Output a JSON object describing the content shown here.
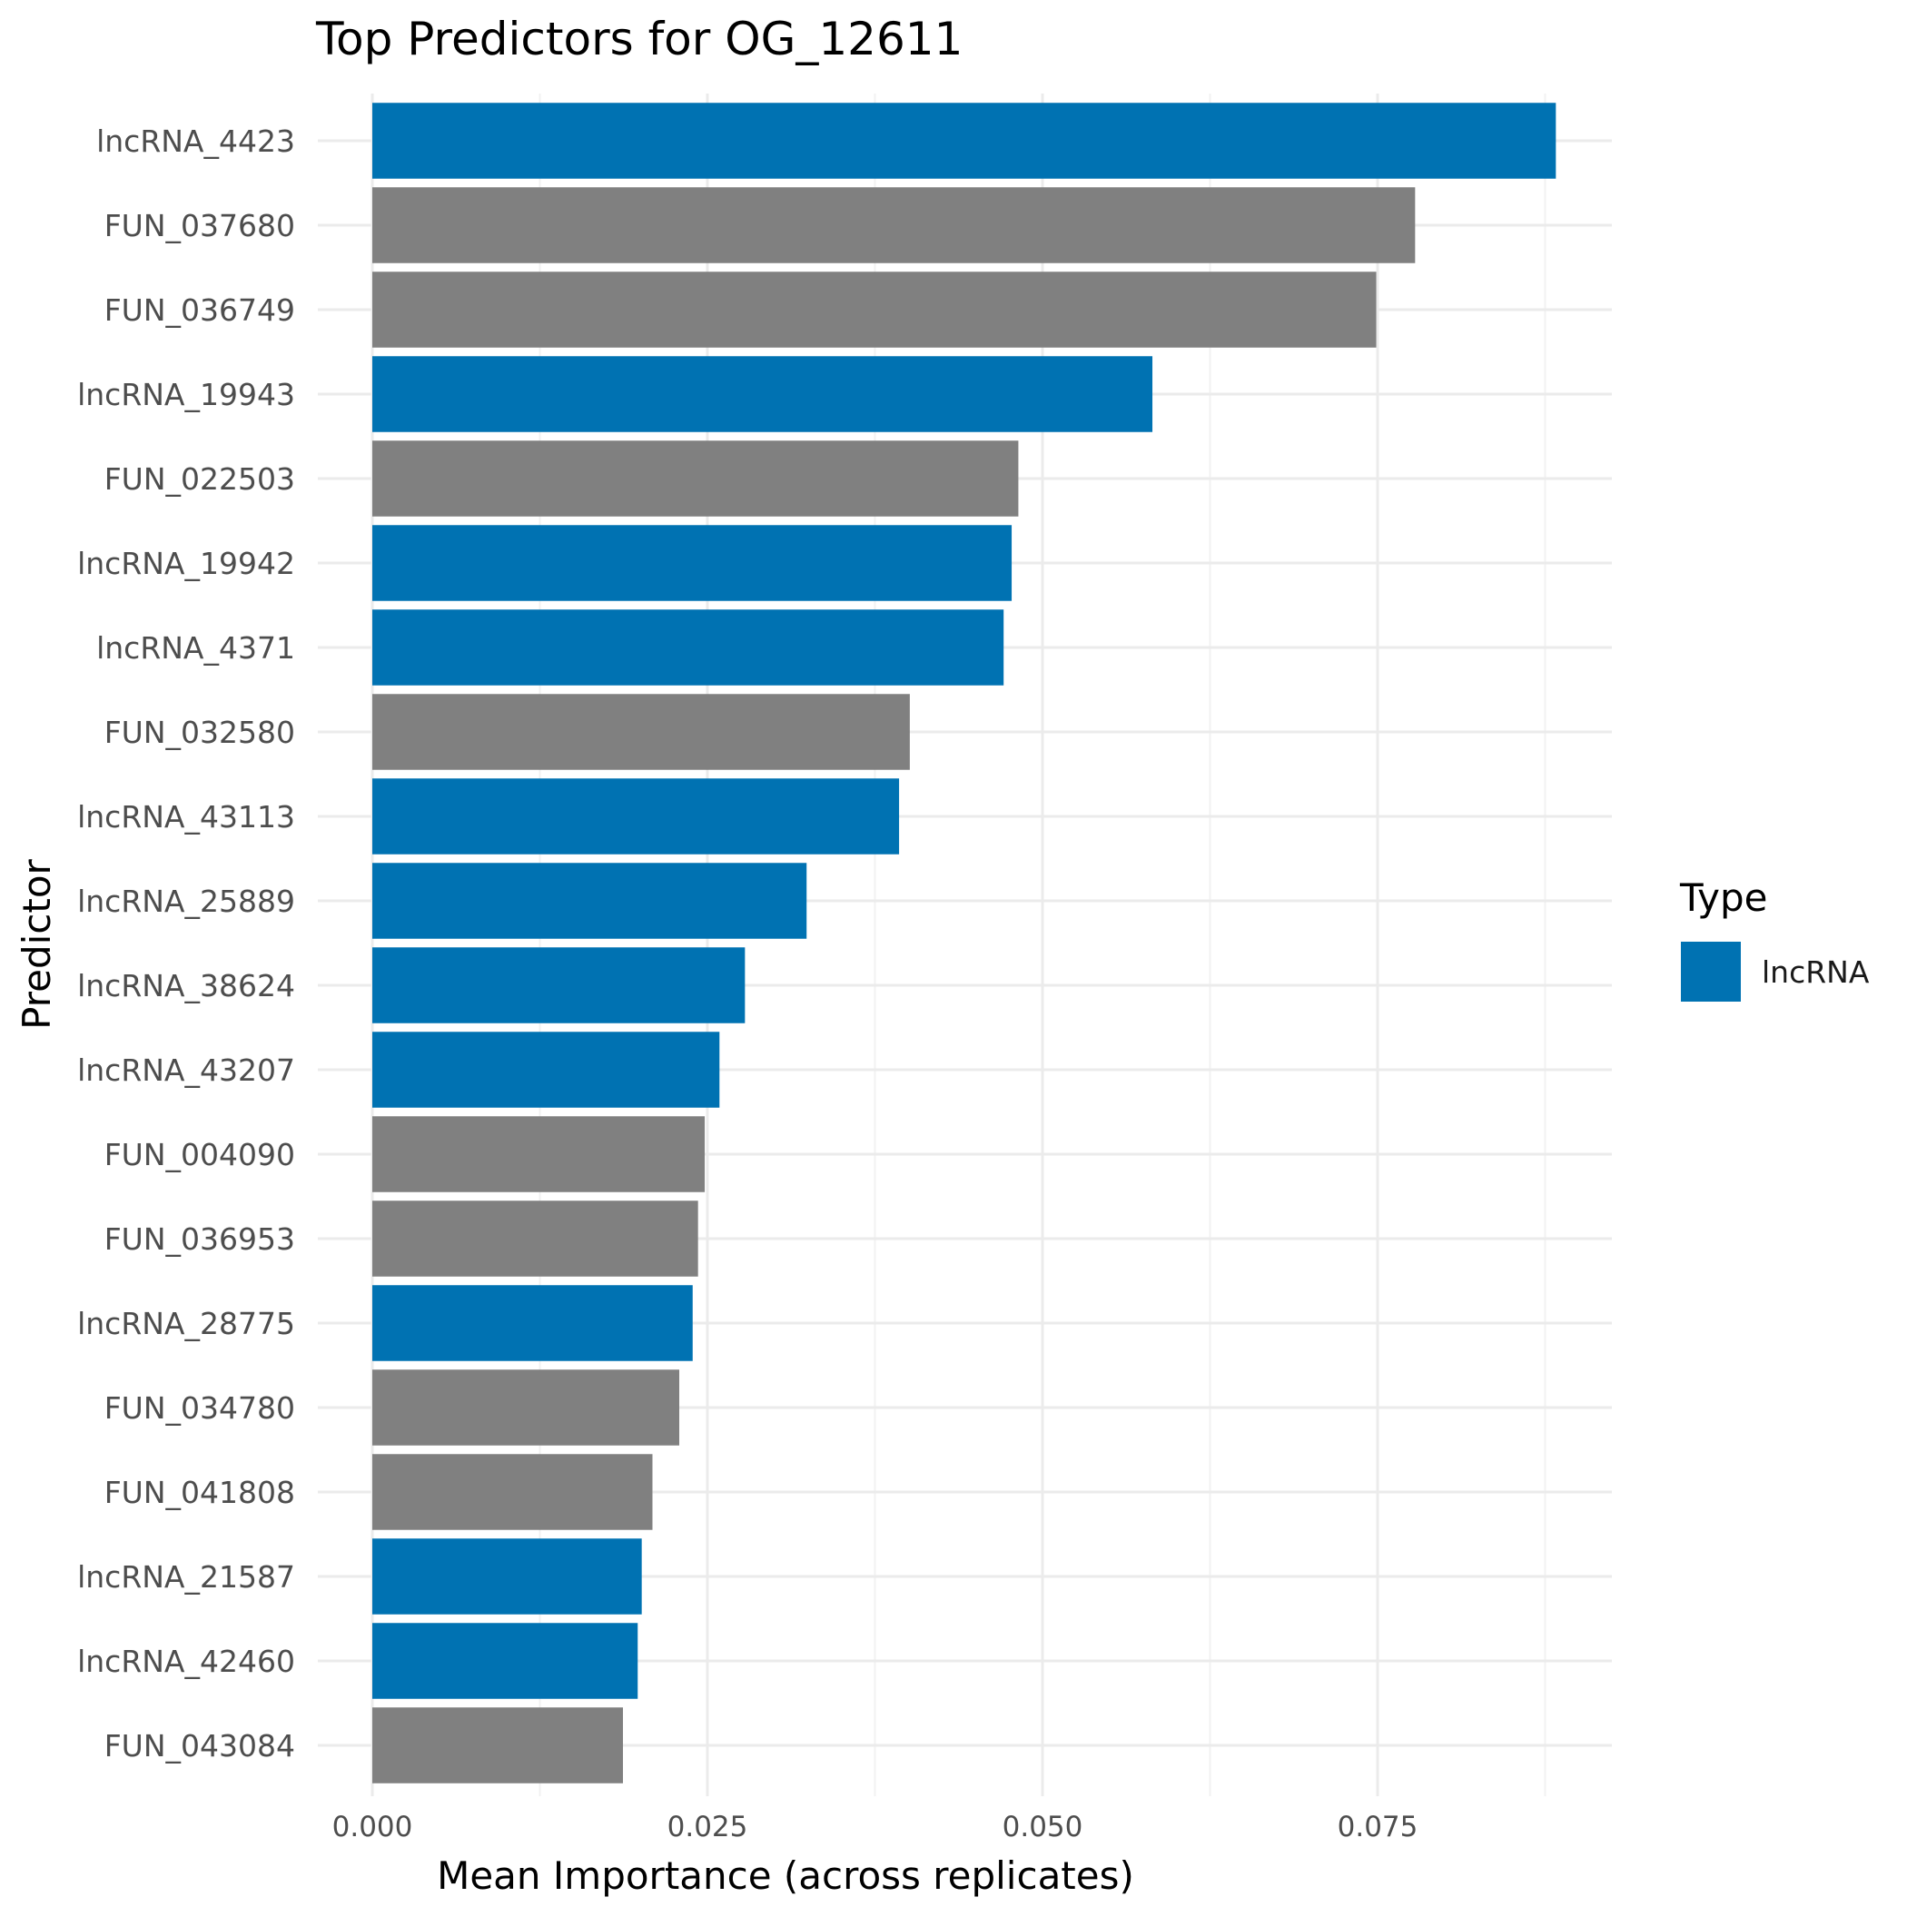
{
  "chart_data": {
    "type": "bar",
    "orientation": "horizontal",
    "title": "Top Predictors for OG_12611",
    "xlabel": "Mean Importance (across replicates)",
    "ylabel": "Predictor",
    "xlim": [
      0,
      0.0925
    ],
    "x_ticks": [
      "0.000",
      "0.025",
      "0.050",
      "0.075"
    ],
    "x_tick_values": [
      0,
      0.025,
      0.05,
      0.075
    ],
    "grid": true,
    "legend": {
      "title": "Type",
      "placement": "right",
      "entries": [
        {
          "label": "lncRNA",
          "color": "#0072b2"
        }
      ]
    },
    "colors": {
      "lncRNA": "#0072b2",
      "other": "#808080"
    },
    "categories": [
      "lncRNA_4423",
      "FUN_037680",
      "FUN_036749",
      "lncRNA_19943",
      "FUN_022503",
      "lncRNA_19942",
      "lncRNA_4371",
      "FUN_032580",
      "lncRNA_43113",
      "lncRNA_25889",
      "lncRNA_38624",
      "lncRNA_43207",
      "FUN_004090",
      "FUN_036953",
      "lncRNA_28775",
      "FUN_034780",
      "FUN_041808",
      "lncRNA_21587",
      "lncRNA_42460",
      "FUN_043084"
    ],
    "values": [
      0.0883,
      0.0778,
      0.0749,
      0.0582,
      0.0482,
      0.0477,
      0.0471,
      0.0401,
      0.0393,
      0.0324,
      0.0278,
      0.0259,
      0.0248,
      0.0243,
      0.0239,
      0.0229,
      0.0209,
      0.0201,
      0.0198,
      0.0187
    ],
    "types": [
      "lncRNA",
      "other",
      "other",
      "lncRNA",
      "other",
      "lncRNA",
      "lncRNA",
      "other",
      "lncRNA",
      "lncRNA",
      "lncRNA",
      "lncRNA",
      "other",
      "other",
      "lncRNA",
      "other",
      "other",
      "lncRNA",
      "lncRNA",
      "other"
    ]
  }
}
